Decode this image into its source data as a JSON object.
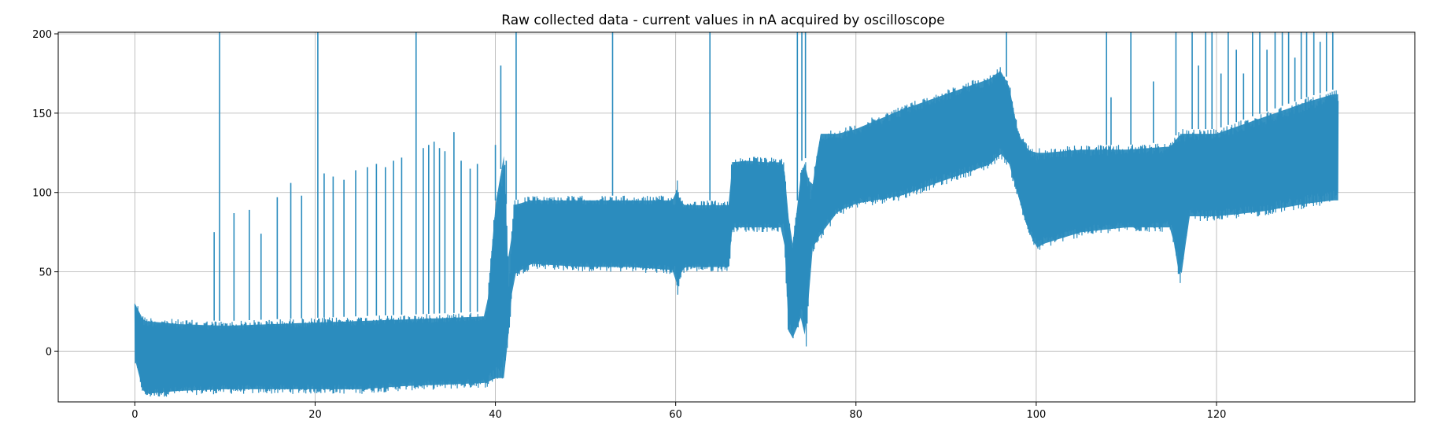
{
  "chart_data": {
    "type": "line",
    "title": "Raw collected data - current values in nA acquired by oscilloscope",
    "xlabel": "",
    "ylabel": "",
    "xlim": [
      -8.5,
      142
    ],
    "ylim": [
      -32,
      201
    ],
    "grid": true,
    "x_ticks": [
      0,
      20,
      40,
      60,
      80,
      100,
      120
    ],
    "y_ticks": [
      0,
      50,
      100,
      150,
      200
    ],
    "x_tick_labels": [
      "0",
      "20",
      "40",
      "60",
      "80",
      "100",
      "120"
    ],
    "y_tick_labels": [
      "0",
      "50",
      "100",
      "150",
      "200"
    ],
    "color": "#2b8cbe",
    "series": [
      {
        "name": "",
        "envelope": {
          "x": [
            0,
            1,
            5,
            10,
            15,
            20,
            25,
            30,
            35,
            39,
            40,
            41,
            41.5,
            42,
            44,
            50,
            55,
            60,
            60.2,
            60.5,
            61,
            63,
            66,
            66.2,
            68,
            70,
            72,
            72.5,
            73,
            74,
            74.5,
            75,
            76,
            78,
            80,
            85,
            90,
            95,
            96,
            97,
            98,
            99,
            100,
            101,
            105,
            110,
            115,
            116,
            117,
            120,
            125,
            130,
            133,
            133.5
          ],
          "upper": [
            33,
            22,
            20,
            19,
            20,
            21,
            22,
            23,
            24,
            25,
            95,
            128,
            40,
            95,
            98,
            98,
            98,
            98,
            113,
            98,
            95,
            95,
            95,
            122,
            123,
            122,
            122,
            88,
            70,
            120,
            122,
            100,
            140,
            140,
            143,
            155,
            165,
            175,
            180,
            170,
            140,
            130,
            128,
            128,
            130,
            130,
            132,
            140,
            140,
            140,
            150,
            160,
            165,
            165
          ],
          "lower": [
            -8,
            -30,
            -28,
            -27,
            -27,
            -27,
            -27,
            -25,
            -24,
            -23,
            -20,
            -20,
            10,
            45,
            52,
            50,
            50,
            48,
            28,
            45,
            50,
            50,
            50,
            75,
            75,
            75,
            75,
            10,
            5,
            20,
            0,
            60,
            70,
            85,
            90,
            95,
            105,
            115,
            122,
            115,
            95,
            75,
            62,
            65,
            72,
            75,
            75,
            40,
            82,
            82,
            85,
            90,
            92,
            92
          ]
        },
        "spikes": [
          {
            "x": 8.8,
            "y": 75
          },
          {
            "x": 9.4,
            "y": 201
          },
          {
            "x": 11.0,
            "y": 87
          },
          {
            "x": 12.7,
            "y": 89
          },
          {
            "x": 14.0,
            "y": 74
          },
          {
            "x": 15.8,
            "y": 97
          },
          {
            "x": 17.3,
            "y": 106
          },
          {
            "x": 18.5,
            "y": 98
          },
          {
            "x": 20.3,
            "y": 201
          },
          {
            "x": 21.0,
            "y": 112
          },
          {
            "x": 22.0,
            "y": 110
          },
          {
            "x": 23.2,
            "y": 108
          },
          {
            "x": 24.5,
            "y": 114
          },
          {
            "x": 25.8,
            "y": 116
          },
          {
            "x": 26.8,
            "y": 118
          },
          {
            "x": 27.8,
            "y": 116
          },
          {
            "x": 28.7,
            "y": 120
          },
          {
            "x": 29.6,
            "y": 122
          },
          {
            "x": 31.2,
            "y": 201
          },
          {
            "x": 32.0,
            "y": 128
          },
          {
            "x": 32.6,
            "y": 130
          },
          {
            "x": 33.2,
            "y": 132
          },
          {
            "x": 33.8,
            "y": 128
          },
          {
            "x": 34.4,
            "y": 126
          },
          {
            "x": 35.4,
            "y": 138
          },
          {
            "x": 36.2,
            "y": 120
          },
          {
            "x": 37.2,
            "y": 115
          },
          {
            "x": 38.0,
            "y": 118
          },
          {
            "x": 40.0,
            "y": 130
          },
          {
            "x": 40.6,
            "y": 180
          },
          {
            "x": 41.2,
            "y": 120
          },
          {
            "x": 42.3,
            "y": 201
          },
          {
            "x": 53.0,
            "y": 201
          },
          {
            "x": 63.8,
            "y": 201
          },
          {
            "x": 73.5,
            "y": 201
          },
          {
            "x": 74.0,
            "y": 201
          },
          {
            "x": 74.4,
            "y": 201
          },
          {
            "x": 96.7,
            "y": 201
          },
          {
            "x": 107.8,
            "y": 201
          },
          {
            "x": 108.3,
            "y": 160
          },
          {
            "x": 110.5,
            "y": 201
          },
          {
            "x": 113.0,
            "y": 170
          },
          {
            "x": 115.5,
            "y": 201
          },
          {
            "x": 117.3,
            "y": 201
          },
          {
            "x": 118.0,
            "y": 180
          },
          {
            "x": 118.8,
            "y": 201
          },
          {
            "x": 119.5,
            "y": 201
          },
          {
            "x": 120.5,
            "y": 175
          },
          {
            "x": 121.3,
            "y": 201
          },
          {
            "x": 122.2,
            "y": 190
          },
          {
            "x": 123.0,
            "y": 175
          },
          {
            "x": 124.0,
            "y": 201
          },
          {
            "x": 124.8,
            "y": 201
          },
          {
            "x": 125.6,
            "y": 190
          },
          {
            "x": 126.5,
            "y": 201
          },
          {
            "x": 127.3,
            "y": 201
          },
          {
            "x": 128.0,
            "y": 201
          },
          {
            "x": 128.7,
            "y": 185
          },
          {
            "x": 129.4,
            "y": 201
          },
          {
            "x": 130.0,
            "y": 201
          },
          {
            "x": 130.8,
            "y": 201
          },
          {
            "x": 131.5,
            "y": 195
          },
          {
            "x": 132.2,
            "y": 201
          },
          {
            "x": 132.9,
            "y": 201
          }
        ]
      }
    ]
  }
}
